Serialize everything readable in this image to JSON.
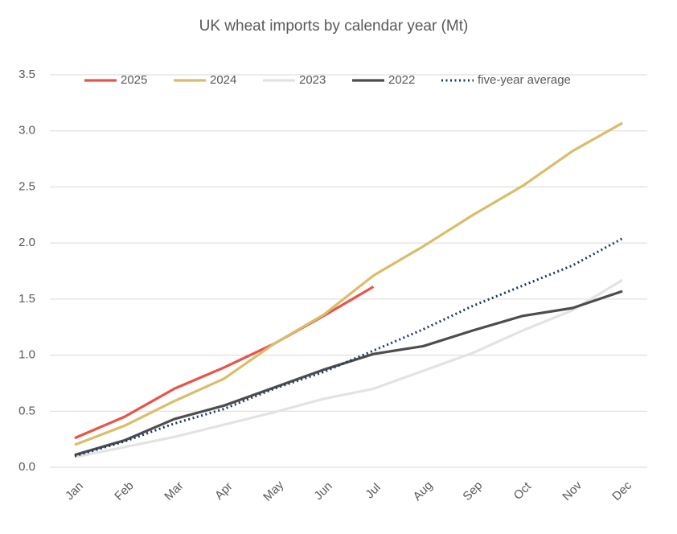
{
  "chart_data": {
    "type": "line",
    "title": "UK wheat imports by calendar year (Mt)",
    "categories": [
      "Jan",
      "Feb",
      "Mar",
      "Apr",
      "May",
      "Jun",
      "Jul",
      "Aug",
      "Sep",
      "Oct",
      "Nov",
      "Dec"
    ],
    "series": [
      {
        "name": "2025",
        "color": "#e8534a",
        "values": [
          0.26,
          0.45,
          0.7,
          0.89,
          1.1,
          1.35,
          1.61,
          null,
          null,
          null,
          null,
          null
        ]
      },
      {
        "name": "2024",
        "color": "#d9bd6a",
        "values": [
          0.2,
          0.37,
          0.59,
          0.79,
          1.1,
          1.36,
          1.71,
          1.97,
          2.25,
          2.51,
          2.82,
          3.07
        ]
      },
      {
        "name": "2023",
        "color": "#e3e3e3",
        "values": [
          0.09,
          0.18,
          0.27,
          0.38,
          0.49,
          0.61,
          0.7,
          0.86,
          1.02,
          1.22,
          1.4,
          1.67
        ]
      },
      {
        "name": "2022",
        "color": "#4d4d4d",
        "values": [
          0.11,
          0.24,
          0.43,
          0.55,
          0.71,
          0.87,
          1.01,
          1.08,
          1.22,
          1.35,
          1.42,
          1.57
        ]
      },
      {
        "name": "five-year average",
        "color": "#1f3864",
        "dashed": true,
        "values": [
          0.1,
          0.23,
          0.39,
          0.52,
          0.7,
          0.85,
          1.04,
          1.23,
          1.44,
          1.62,
          1.8,
          2.04
        ]
      }
    ],
    "ylim": [
      0,
      3.5
    ],
    "yticks": [
      {
        "value": 0,
        "label": "0.0"
      },
      0.5,
      {
        "value": 1,
        "label": "1.0"
      },
      1.5,
      {
        "value": 2,
        "label": "2.0"
      },
      2.5,
      {
        "value": 3,
        "label": "3.0"
      },
      3.5
    ],
    "grid": true,
    "legend": "top"
  }
}
